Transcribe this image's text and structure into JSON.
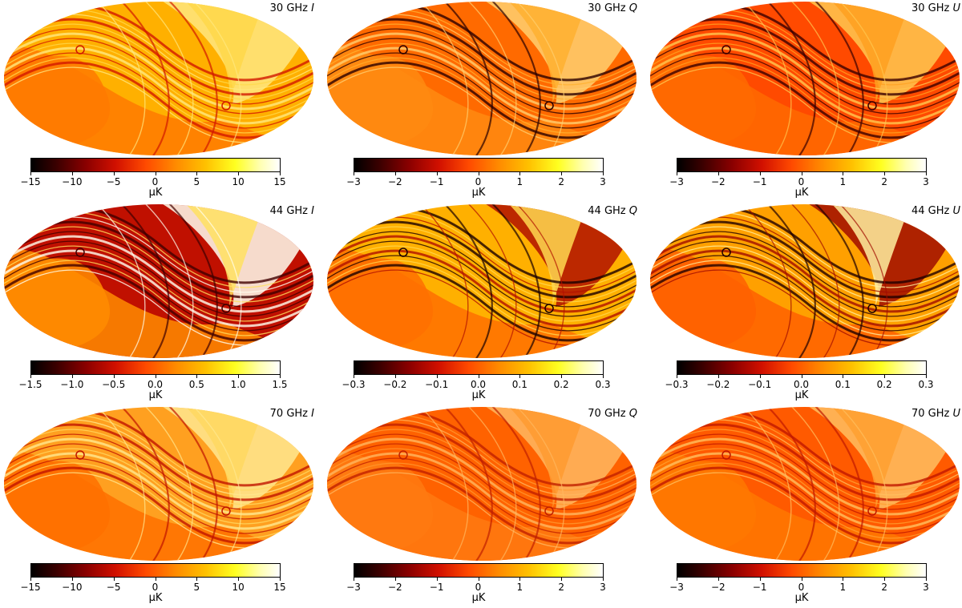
{
  "panels": [
    {
      "freq": "30 GHz",
      "stokes": "I",
      "ticks": [
        "−15",
        "−10",
        "−5",
        "0",
        "5",
        "10",
        "15"
      ],
      "unit": "μK",
      "palette": [
        "#ffb000",
        "#ff7a00",
        "#ffd84a",
        "#ffe880",
        "#d21800"
      ]
    },
    {
      "freq": "30 GHz",
      "stokes": "Q",
      "ticks": [
        "−3",
        "−2",
        "−1",
        "0",
        "1",
        "2",
        "3"
      ],
      "unit": "μK",
      "palette": [
        "#ff6a00",
        "#ff8a10",
        "#ffb030",
        "#ffd070",
        "#2a0000"
      ]
    },
    {
      "freq": "30 GHz",
      "stokes": "U",
      "ticks": [
        "−3",
        "−2",
        "−1",
        "0",
        "1",
        "2",
        "3"
      ],
      "unit": "μK",
      "palette": [
        "#ff4a00",
        "#ff6a00",
        "#ffa020",
        "#ffc850",
        "#3a0000"
      ]
    },
    {
      "freq": "44 GHz",
      "stokes": "I",
      "ticks": [
        "−1.5",
        "−1.0",
        "−0.5",
        "0.0",
        "0.5",
        "1.0",
        "1.5"
      ],
      "unit": "μK",
      "palette": [
        "#c01000",
        "#ff8c00",
        "#ffe060",
        "#fffff0",
        "#400000"
      ]
    },
    {
      "freq": "44 GHz",
      "stokes": "Q",
      "ticks": [
        "−0.3",
        "−0.2",
        "−0.1",
        "0.0",
        "0.1",
        "0.2",
        "0.3"
      ],
      "unit": "μK",
      "palette": [
        "#ffb000",
        "#ff7000",
        "#ffd850",
        "#b01000",
        "#1a0000"
      ]
    },
    {
      "freq": "44 GHz",
      "stokes": "U",
      "ticks": [
        "−0.3",
        "−0.2",
        "−0.1",
        "0.0",
        "0.1",
        "0.2",
        "0.3"
      ],
      "unit": "μK",
      "palette": [
        "#ffa000",
        "#ff6000",
        "#fff0a0",
        "#a00c00",
        "#200000"
      ]
    },
    {
      "freq": "70 GHz",
      "stokes": "I",
      "ticks": [
        "−15",
        "−10",
        "−5",
        "0",
        "5",
        "10",
        "15"
      ],
      "unit": "μK",
      "palette": [
        "#ffa020",
        "#ff7000",
        "#ffd860",
        "#ffe890",
        "#c01400"
      ]
    },
    {
      "freq": "70 GHz",
      "stokes": "Q",
      "ticks": [
        "−3",
        "−2",
        "−1",
        "0",
        "1",
        "2",
        "3"
      ],
      "unit": "μK",
      "palette": [
        "#ff6200",
        "#ff7a10",
        "#ff9a30",
        "#ffb860",
        "#c02000"
      ]
    },
    {
      "freq": "70 GHz",
      "stokes": "U",
      "ticks": [
        "−3",
        "−2",
        "−1",
        "0",
        "1",
        "2",
        "3"
      ],
      "unit": "μK",
      "palette": [
        "#ff5a00",
        "#ff7800",
        "#ffa030",
        "#ffc060",
        "#c01800"
      ]
    }
  ]
}
